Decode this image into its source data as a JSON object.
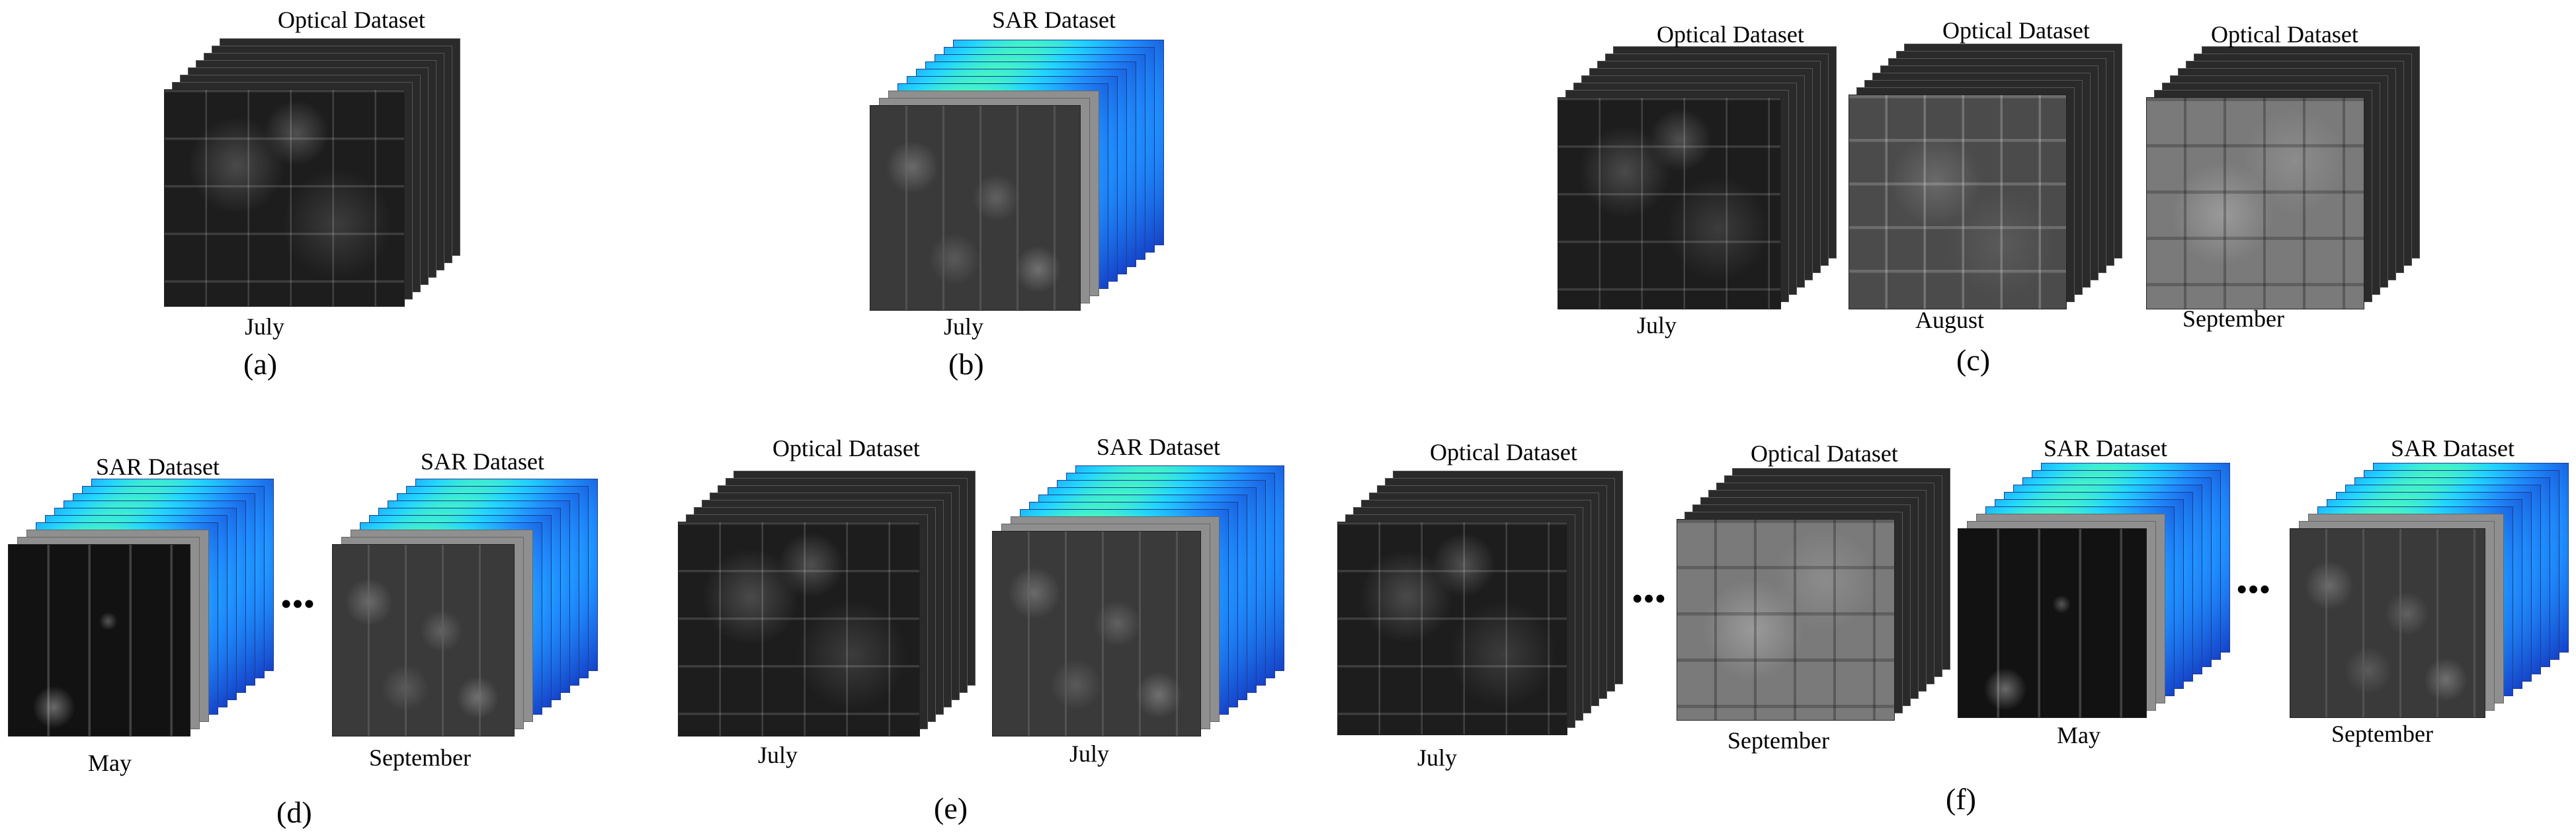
{
  "colors": {
    "sar_heatmap": [
      "#1540c8",
      "#1f8fff",
      "#21d4ff",
      "#52ffb0",
      "#ffe628",
      "#ff7a10",
      "#e21212"
    ],
    "optical": "#2a2a2a",
    "label_text": "#000000"
  },
  "labels": {
    "a": {
      "panel": "(a)",
      "titles": [
        "Optical Dataset"
      ],
      "months": [
        "July"
      ]
    },
    "b": {
      "panel": "(b)",
      "titles": [
        "SAR Dataset"
      ],
      "months": [
        "July"
      ]
    },
    "c": {
      "panel": "(c)",
      "titles": [
        "Optical Dataset",
        "Optical Dataset",
        "Optical Dataset"
      ],
      "months": [
        "July",
        "August",
        "September"
      ]
    },
    "d": {
      "panel": "(d)",
      "titles": [
        "SAR Dataset",
        "SAR Dataset"
      ],
      "months": [
        "May",
        "September"
      ],
      "ellipsis": "•••"
    },
    "e": {
      "panel": "(e)",
      "titles": [
        "Optical Dataset",
        "SAR Dataset"
      ],
      "months": [
        "July",
        "July"
      ]
    },
    "f": {
      "panel": "(f)",
      "titles": [
        "Optical Dataset",
        "Optical Dataset",
        "SAR Dataset",
        "SAR Dataset"
      ],
      "months": [
        "July",
        "September",
        "May",
        "September"
      ],
      "ellipsis": [
        "•••",
        "•••"
      ]
    }
  }
}
